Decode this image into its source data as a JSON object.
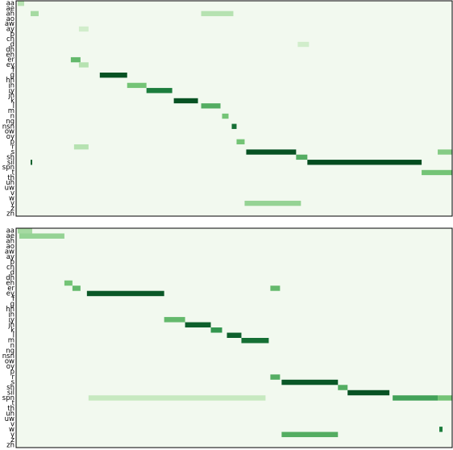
{
  "chart_data": [
    {
      "type": "heatmap",
      "rows": [
        "aa",
        "ae",
        "ah",
        "ao",
        "aw",
        "ay",
        "b",
        "ch",
        "d",
        "dh",
        "eh",
        "er",
        "ey",
        "f",
        "g",
        "hh",
        "ih",
        "iy",
        "jh",
        "k",
        "l",
        "m",
        "n",
        "ng",
        "nsn",
        "ow",
        "oy",
        "p",
        "r",
        "s",
        "sh",
        "sil",
        "spn",
        "t",
        "th",
        "uh",
        "uw",
        "v",
        "w",
        "y",
        "z",
        "zh"
      ],
      "frames": 271,
      "cells": [
        {
          "row": 0,
          "start": 1,
          "end": 5,
          "value": 0.3
        },
        {
          "row": 2,
          "start": 9,
          "end": 14,
          "value": 0.35
        },
        {
          "row": 2,
          "start": 115,
          "end": 135,
          "value": 0.3
        },
        {
          "row": 5,
          "start": 39,
          "end": 45,
          "value": 0.2
        },
        {
          "row": 8,
          "start": 175,
          "end": 182,
          "value": 0.2
        },
        {
          "row": 11,
          "start": 34,
          "end": 40,
          "value": 0.55
        },
        {
          "row": 12,
          "start": 39,
          "end": 45,
          "value": 0.3
        },
        {
          "row": 14,
          "start": 52,
          "end": 69,
          "value": 0.95
        },
        {
          "row": 16,
          "start": 69,
          "end": 81,
          "value": 0.5
        },
        {
          "row": 17,
          "start": 81,
          "end": 97,
          "value": 0.8
        },
        {
          "row": 19,
          "start": 98,
          "end": 113,
          "value": 0.95
        },
        {
          "row": 20,
          "start": 115,
          "end": 127,
          "value": 0.6
        },
        {
          "row": 22,
          "start": 128,
          "end": 132,
          "value": 0.5
        },
        {
          "row": 24,
          "start": 134,
          "end": 137,
          "value": 0.85
        },
        {
          "row": 27,
          "start": 137,
          "end": 142,
          "value": 0.5
        },
        {
          "row": 28,
          "start": 36,
          "end": 45,
          "value": 0.3
        },
        {
          "row": 29,
          "start": 143,
          "end": 174,
          "value": 0.95
        },
        {
          "row": 29,
          "start": 262,
          "end": 271,
          "value": 0.45
        },
        {
          "row": 30,
          "start": 174,
          "end": 181,
          "value": 0.6
        },
        {
          "row": 31,
          "start": 9,
          "end": 10,
          "value": 0.9
        },
        {
          "row": 31,
          "start": 181,
          "end": 252,
          "value": 0.97
        },
        {
          "row": 33,
          "start": 252,
          "end": 271,
          "value": 0.5
        },
        {
          "row": 39,
          "start": 142,
          "end": 177,
          "value": 0.4
        }
      ]
    },
    {
      "type": "heatmap",
      "rows": [
        "aa",
        "ae",
        "ah",
        "ao",
        "aw",
        "ay",
        "b",
        "ch",
        "d",
        "dh",
        "eh",
        "er",
        "ey",
        "f",
        "g",
        "hh",
        "ih",
        "iy",
        "jh",
        "k",
        "l",
        "m",
        "n",
        "ng",
        "nsn",
        "ow",
        "oy",
        "p",
        "r",
        "s",
        "sh",
        "sil",
        "spn",
        "t",
        "th",
        "uh",
        "uw",
        "v",
        "w",
        "y",
        "z",
        "zh"
      ],
      "frames": 271,
      "cells": [
        {
          "row": 0,
          "start": 1,
          "end": 10,
          "value": 0.35
        },
        {
          "row": 1,
          "start": 2,
          "end": 30,
          "value": 0.4
        },
        {
          "row": 10,
          "start": 30,
          "end": 35,
          "value": 0.5
        },
        {
          "row": 11,
          "start": 35,
          "end": 40,
          "value": 0.55
        },
        {
          "row": 11,
          "start": 158,
          "end": 164,
          "value": 0.55
        },
        {
          "row": 12,
          "start": 44,
          "end": 92,
          "value": 0.93
        },
        {
          "row": 17,
          "start": 92,
          "end": 105,
          "value": 0.55
        },
        {
          "row": 18,
          "start": 105,
          "end": 121,
          "value": 0.9
        },
        {
          "row": 19,
          "start": 121,
          "end": 128,
          "value": 0.7
        },
        {
          "row": 20,
          "start": 131,
          "end": 140,
          "value": 0.9
        },
        {
          "row": 21,
          "start": 140,
          "end": 157,
          "value": 0.85
        },
        {
          "row": 28,
          "start": 158,
          "end": 164,
          "value": 0.6
        },
        {
          "row": 29,
          "start": 165,
          "end": 200,
          "value": 0.93
        },
        {
          "row": 30,
          "start": 200,
          "end": 206,
          "value": 0.6
        },
        {
          "row": 31,
          "start": 206,
          "end": 232,
          "value": 0.95
        },
        {
          "row": 32,
          "start": 45,
          "end": 155,
          "value": 0.25
        },
        {
          "row": 32,
          "start": 234,
          "end": 262,
          "value": 0.65
        },
        {
          "row": 32,
          "start": 262,
          "end": 271,
          "value": 0.5
        },
        {
          "row": 38,
          "start": 263,
          "end": 265,
          "value": 0.8
        },
        {
          "row": 39,
          "start": 165,
          "end": 200,
          "value": 0.6
        }
      ]
    }
  ]
}
